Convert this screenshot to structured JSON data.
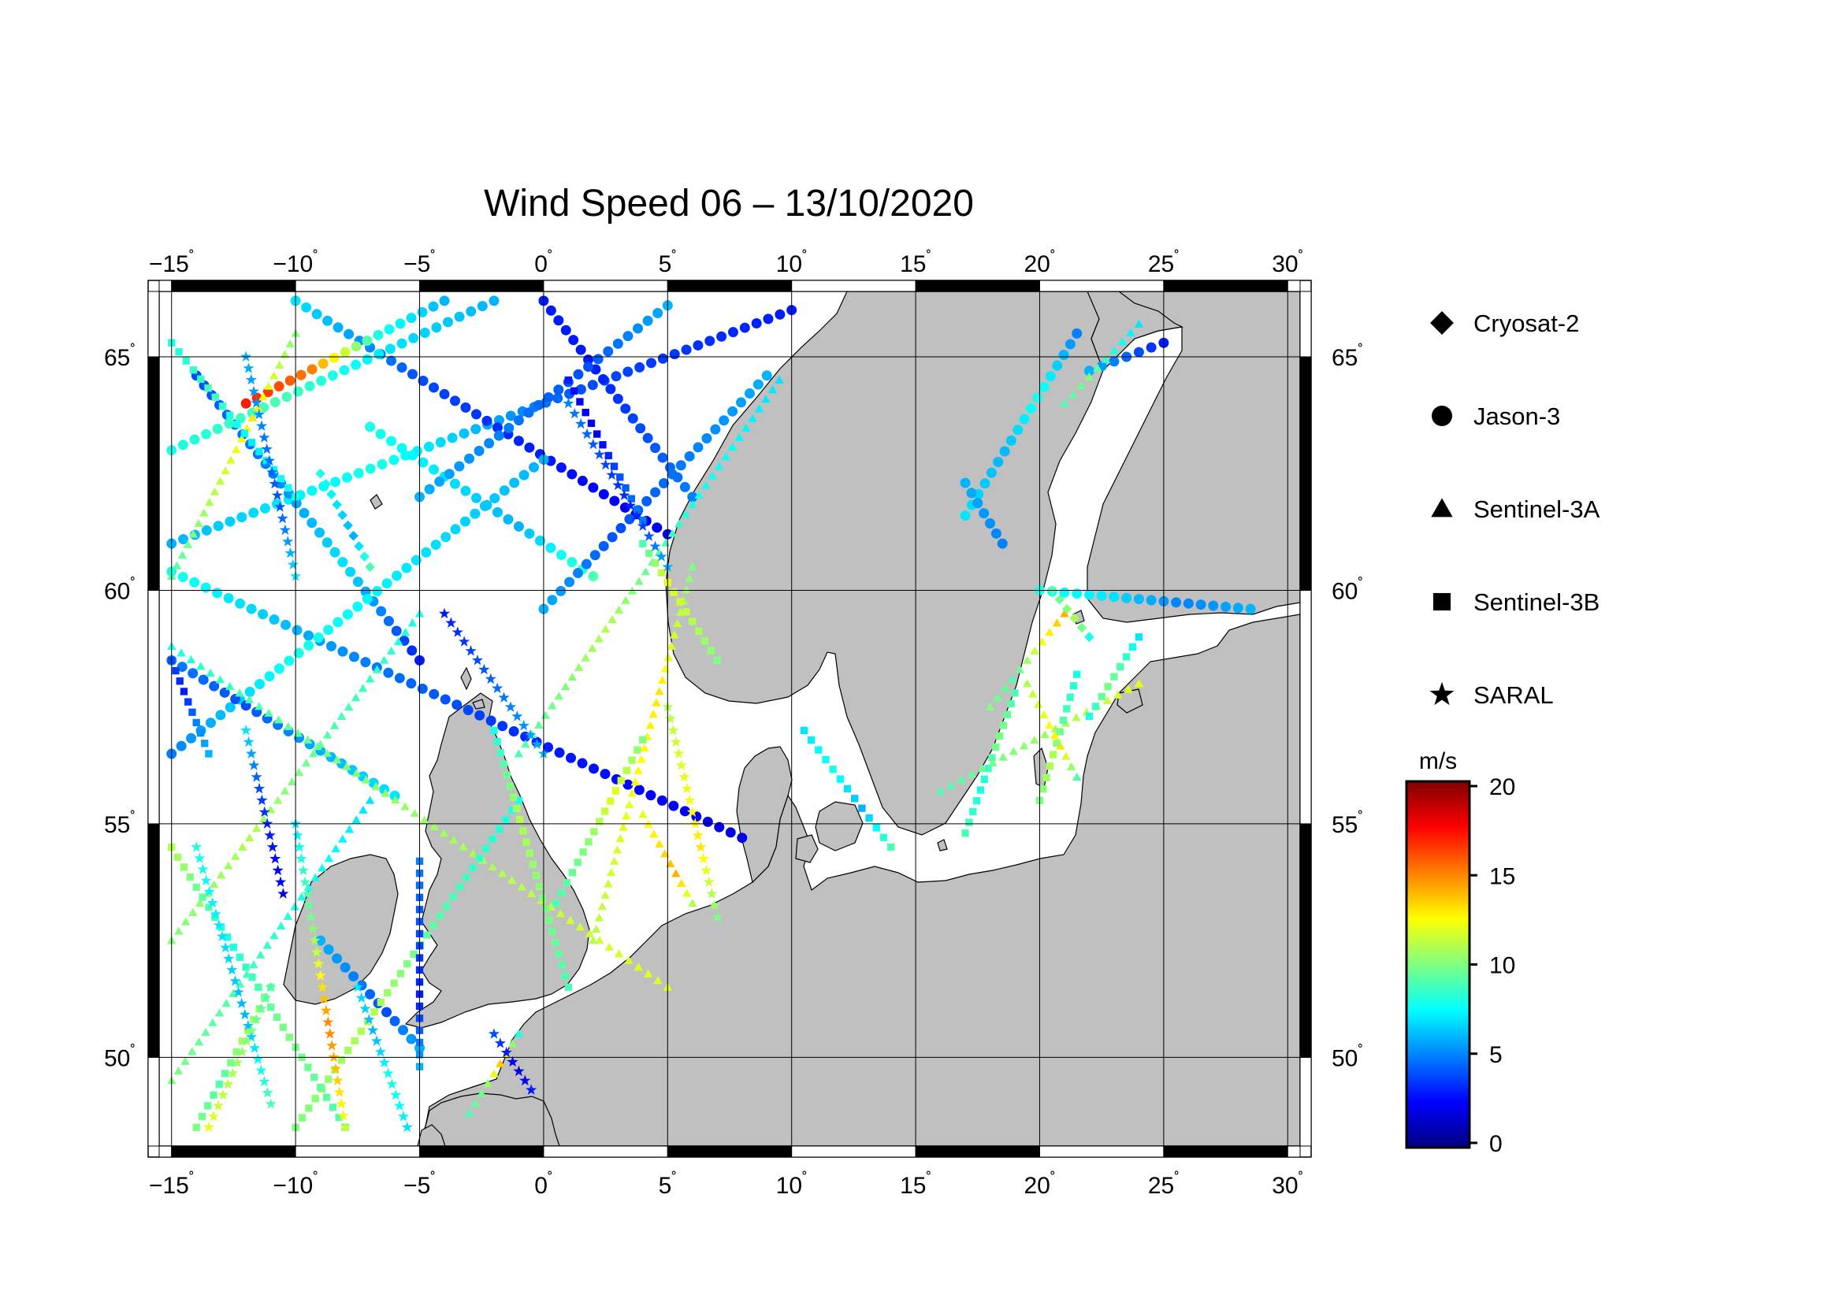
{
  "title": "Wind Speed 06 – 13/10/2020",
  "map": {
    "lon_range": [
      -15.5,
      30.5
    ],
    "lat_range": [
      48.1,
      66.4
    ],
    "lon_ticks": [
      "−15",
      "−10",
      "−5",
      "0",
      "5",
      "10",
      "15",
      "20",
      "25",
      "30"
    ],
    "lat_ticks": [
      "50",
      "55",
      "60",
      "65"
    ],
    "degree_symbol": "˚",
    "land_color": "#c0c0c0",
    "ocean_color": "#ffffff"
  },
  "legend": {
    "items": [
      {
        "label": "Cryosat-2",
        "symbol": "diamond"
      },
      {
        "label": "Jason-3",
        "symbol": "circle"
      },
      {
        "label": "Sentinel-3A",
        "symbol": "triangle"
      },
      {
        "label": "Sentinel-3B",
        "symbol": "square"
      },
      {
        "label": "SARAL",
        "symbol": "star"
      }
    ]
  },
  "colorbar": {
    "unit": "m/s",
    "min": 0,
    "max": 20,
    "ticks": [
      "0",
      "5",
      "10",
      "15",
      "20"
    ],
    "colormap": [
      "#000080",
      "#0000ff",
      "#0080ff",
      "#00ffff",
      "#80ff80",
      "#ffff00",
      "#ff8000",
      "#ff0000",
      "#800000"
    ]
  },
  "tracks": [
    {
      "sat": "Jason-3",
      "from": [
        -15,
        61.0
      ],
      "to": [
        10,
        66.0
      ],
      "w": [
        6,
        8,
        4,
        3
      ]
    },
    {
      "sat": "Jason-3",
      "from": [
        -15,
        60.4
      ],
      "to": [
        8,
        54.7
      ],
      "w": [
        8,
        5,
        3,
        2
      ]
    },
    {
      "sat": "Jason-3",
      "from": [
        -14,
        64.6
      ],
      "to": [
        -5,
        58.5
      ],
      "w": [
        4,
        5,
        7,
        3
      ]
    },
    {
      "sat": "Jason-3",
      "from": [
        -10,
        66.2
      ],
      "to": [
        5,
        61.2
      ],
      "w": [
        7,
        4,
        3,
        2
      ]
    },
    {
      "sat": "Jason-3",
      "from": [
        0,
        66.2
      ],
      "to": [
        6,
        62.0
      ],
      "w": [
        3,
        3,
        4,
        5
      ]
    },
    {
      "sat": "Jason-3",
      "from": [
        -15,
        56.5
      ],
      "to": [
        0,
        62.8
      ],
      "w": [
        5,
        8,
        7,
        6
      ]
    },
    {
      "sat": "Jason-3",
      "from": [
        -15,
        58.5
      ],
      "to": [
        -6,
        55.6
      ],
      "w": [
        5,
        4,
        6,
        7
      ]
    },
    {
      "sat": "Jason-3",
      "from": [
        -9,
        52.5
      ],
      "to": [
        -5,
        50.2
      ],
      "w": [
        6,
        5,
        4,
        6
      ]
    },
    {
      "sat": "Jason-3",
      "from": [
        -7,
        63.5
      ],
      "to": [
        2,
        60.3
      ],
      "w": [
        8,
        7,
        6,
        9
      ]
    },
    {
      "sat": "Jason-3",
      "from": [
        -12,
        64.0
      ],
      "to": [
        -4,
        66.2
      ],
      "w": [
        17,
        15,
        8,
        6
      ]
    },
    {
      "sat": "Jason-3",
      "from": [
        0,
        59.6
      ],
      "to": [
        9,
        64.6
      ],
      "w": [
        6,
        4,
        5,
        6
      ]
    },
    {
      "sat": "Jason-3",
      "from": [
        -5,
        62.0
      ],
      "to": [
        5,
        66.1
      ],
      "w": [
        6,
        5,
        4,
        6
      ]
    },
    {
      "sat": "Jason-3",
      "from": [
        -15,
        63.0
      ],
      "to": [
        -2,
        66.2
      ],
      "w": [
        8,
        9,
        7,
        6
      ]
    },
    {
      "sat": "Jason-3",
      "from": [
        17.0,
        61.6
      ],
      "to": [
        21.5,
        65.5
      ],
      "w": [
        7,
        6,
        8,
        5
      ]
    },
    {
      "sat": "Jason-3",
      "from": [
        22.0,
        64.7
      ],
      "to": [
        25.0,
        65.3
      ],
      "w": [
        6,
        5,
        4,
        3
      ]
    },
    {
      "sat": "Jason-3",
      "from": [
        20.0,
        60.0
      ],
      "to": [
        28.5,
        59.6
      ],
      "w": [
        8,
        7,
        5,
        6
      ]
    },
    {
      "sat": "Jason-3",
      "from": [
        17.0,
        62.3
      ],
      "to": [
        18.5,
        61.0
      ],
      "w": [
        6,
        5
      ]
    },
    {
      "sat": "Sentinel-3A",
      "from": [
        -15,
        58.8
      ],
      "to": [
        5,
        51.5
      ],
      "w": [
        8,
        10,
        11,
        12
      ]
    },
    {
      "sat": "Sentinel-3A",
      "from": [
        -1,
        56.5
      ],
      "to": [
        9.5,
        64.5
      ],
      "w": [
        9,
        11,
        8,
        7
      ]
    },
    {
      "sat": "Sentinel-3A",
      "from": [
        -15,
        52.5
      ],
      "to": [
        -5,
        59.5
      ],
      "w": [
        10,
        11,
        9,
        8
      ]
    },
    {
      "sat": "Sentinel-3A",
      "from": [
        2,
        52.5
      ],
      "to": [
        6,
        60.5
      ],
      "w": [
        11,
        12,
        13,
        10
      ]
    },
    {
      "sat": "Sentinel-3A",
      "from": [
        -15,
        60.3
      ],
      "to": [
        -10,
        65.5
      ],
      "w": [
        9,
        11,
        13,
        10
      ]
    },
    {
      "sat": "Sentinel-3A",
      "from": [
        -15,
        49.5
      ],
      "to": [
        -7,
        55.5
      ],
      "w": [
        10,
        9,
        8,
        7
      ]
    },
    {
      "sat": "Sentinel-3A",
      "from": [
        -3,
        48.8
      ],
      "to": [
        -1,
        50.5
      ],
      "w": [
        9,
        10,
        14,
        8
      ]
    },
    {
      "sat": "Sentinel-3A",
      "from": [
        4,
        55.2
      ],
      "to": [
        6,
        53.3
      ],
      "w": [
        12,
        13,
        14,
        11
      ]
    },
    {
      "sat": "Sentinel-3A",
      "from": [
        19.5,
        58.0
      ],
      "to": [
        21.5,
        56.0
      ],
      "w": [
        11,
        12,
        13,
        9
      ]
    },
    {
      "sat": "Sentinel-3A",
      "from": [
        16,
        55.7
      ],
      "to": [
        24,
        58.0
      ],
      "w": [
        9,
        10,
        11,
        12
      ]
    },
    {
      "sat": "Sentinel-3A",
      "from": [
        21,
        64.0
      ],
      "to": [
        24,
        65.7
      ],
      "w": [
        9,
        10,
        8,
        7
      ]
    },
    {
      "sat": "Sentinel-3A",
      "from": [
        18,
        57.5
      ],
      "to": [
        21,
        59.5
      ],
      "w": [
        10,
        9,
        12,
        14
      ]
    },
    {
      "sat": "Sentinel-3B",
      "from": [
        -10,
        48.5
      ],
      "to": [
        -1,
        55.5
      ],
      "w": [
        10,
        11,
        9,
        8
      ]
    },
    {
      "sat": "Sentinel-3B",
      "from": [
        -5,
        54.2
      ],
      "to": [
        -5,
        49.8
      ],
      "w": [
        5,
        4,
        3,
        6
      ]
    },
    {
      "sat": "Sentinel-3B",
      "from": [
        -15,
        58.5
      ],
      "to": [
        -13.5,
        56.5
      ],
      "w": [
        4,
        3,
        5,
        6
      ]
    },
    {
      "sat": "Sentinel-3B",
      "from": [
        1,
        51.5
      ],
      "to": [
        -2,
        57.0
      ],
      "w": [
        9,
        10,
        11,
        8
      ]
    },
    {
      "sat": "Sentinel-3B",
      "from": [
        0.5,
        53.3
      ],
      "to": [
        4,
        56.8
      ],
      "w": [
        9,
        10,
        12,
        10
      ]
    },
    {
      "sat": "Sentinel-3B",
      "from": [
        7,
        58.5
      ],
      "to": [
        4,
        61.0
      ],
      "w": [
        10,
        11,
        12,
        9
      ]
    },
    {
      "sat": "Sentinel-3B",
      "from": [
        10.5,
        57.0
      ],
      "to": [
        14,
        54.5
      ],
      "w": [
        7,
        8,
        6,
        9
      ]
    },
    {
      "sat": "Sentinel-3B",
      "from": [
        17,
        54.8
      ],
      "to": [
        19,
        57.8
      ],
      "w": [
        9,
        8,
        10,
        9
      ]
    },
    {
      "sat": "Sentinel-3B",
      "from": [
        20,
        55.5
      ],
      "to": [
        21.5,
        58.2
      ],
      "w": [
        10,
        11,
        9,
        8
      ]
    },
    {
      "sat": "Sentinel-3B",
      "from": [
        -8,
        48.5
      ],
      "to": [
        -15,
        54.5
      ],
      "w": [
        9,
        10,
        8,
        11
      ]
    },
    {
      "sat": "Sentinel-3B",
      "from": [
        -14,
        48.5
      ],
      "to": [
        -11,
        51.5
      ],
      "w": [
        10,
        9,
        11,
        10
      ]
    },
    {
      "sat": "Sentinel-3B",
      "from": [
        -15,
        65.3
      ],
      "to": [
        -10,
        62.0
      ],
      "w": [
        8,
        9,
        7,
        8
      ]
    },
    {
      "sat": "Sentinel-3B",
      "from": [
        1,
        64.5
      ],
      "to": [
        4,
        61.5
      ],
      "w": [
        3,
        2,
        4,
        5
      ]
    },
    {
      "sat": "Sentinel-3B",
      "from": [
        22,
        57.3
      ],
      "to": [
        24,
        59.0
      ],
      "w": [
        8,
        10,
        9,
        7
      ]
    },
    {
      "sat": "SARAL",
      "from": [
        -12,
        57.0
      ],
      "to": [
        -10.5,
        53.5
      ],
      "w": [
        7,
        4,
        3,
        2
      ]
    },
    {
      "sat": "SARAL",
      "from": [
        -14,
        54.5
      ],
      "to": [
        -11,
        49.0
      ],
      "w": [
        8,
        7,
        6,
        9
      ]
    },
    {
      "sat": "SARAL",
      "from": [
        -7.5,
        51.5
      ],
      "to": [
        -5.5,
        48.5
      ],
      "w": [
        7,
        6,
        8,
        7
      ]
    },
    {
      "sat": "SARAL",
      "from": [
        -13.5,
        48.5
      ],
      "to": [
        -11,
        51.5
      ],
      "w": [
        12,
        11,
        10,
        9
      ]
    },
    {
      "sat": "SARAL",
      "from": [
        -2,
        50.5
      ],
      "to": [
        -0.5,
        49.3
      ],
      "w": [
        4,
        3,
        2,
        3
      ]
    },
    {
      "sat": "SARAL",
      "from": [
        -12,
        65.0
      ],
      "to": [
        -10,
        60.3
      ],
      "w": [
        6,
        5,
        4,
        7
      ]
    },
    {
      "sat": "SARAL",
      "from": [
        -4,
        59.5
      ],
      "to": [
        0,
        56.5
      ],
      "w": [
        3,
        4,
        5,
        6
      ]
    },
    {
      "sat": "SARAL",
      "from": [
        1,
        64.0
      ],
      "to": [
        5,
        60.5
      ],
      "w": [
        5,
        4,
        3,
        6
      ]
    },
    {
      "sat": "SARAL",
      "from": [
        -10,
        55.0
      ],
      "to": [
        -8,
        48.5
      ],
      "w": [
        7,
        10,
        15,
        12
      ]
    },
    {
      "sat": "SARAL",
      "from": [
        5,
        57.5
      ],
      "to": [
        7,
        53.0
      ],
      "w": [
        11,
        12,
        13,
        10
      ]
    },
    {
      "sat": "Cryosat-2",
      "from": [
        -9,
        62.5
      ],
      "to": [
        -7,
        60.5
      ],
      "w": [
        8,
        7,
        6,
        9
      ]
    },
    {
      "sat": "Cryosat-2",
      "from": [
        20.5,
        60.0
      ],
      "to": [
        22,
        59.0
      ],
      "w": [
        9,
        10,
        11,
        8
      ]
    }
  ]
}
